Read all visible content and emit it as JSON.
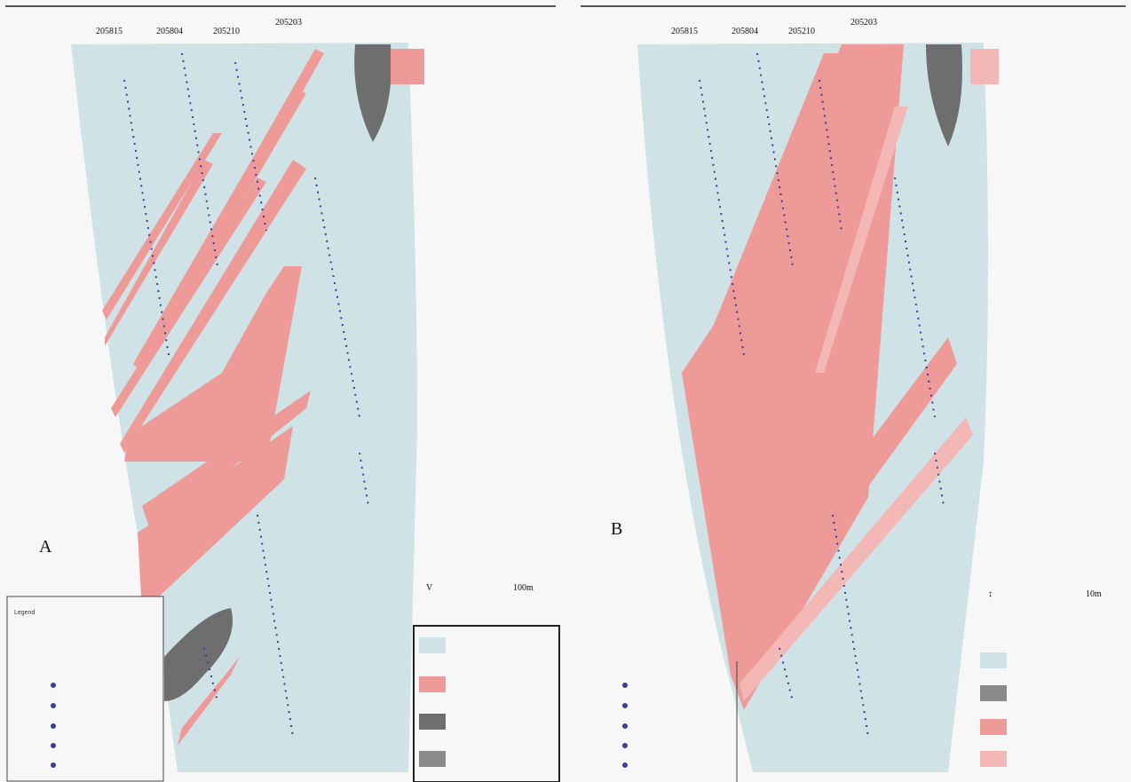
{
  "panel_a": {
    "label": "A",
    "header_labels": [
      "205815",
      "205804",
      "205210",
      "205203"
    ],
    "scale_mark": "V",
    "scale_text": "100m",
    "left_legend": {
      "title": "Legend",
      "subtitle": "",
      "items": [
        "",
        "",
        "",
        ""
      ]
    },
    "right_legend": {
      "items": [
        "",
        "",
        "",
        ""
      ]
    }
  },
  "panel_b": {
    "label": "B",
    "header_labels": [
      "205815",
      "205804",
      "205210",
      "205203"
    ],
    "scale_mark": "↕",
    "scale_text": "10m",
    "left_legend": {
      "title": "",
      "subtitle": "",
      "items": [
        "",
        "",
        "",
        "",
        ""
      ]
    },
    "right_legend": {
      "items": [
        "",
        "",
        "",
        ""
      ]
    }
  },
  "colors": {
    "background": "#f7f7f7",
    "host_rock": "#cfe3e6",
    "pink_zone": "#ee9a98",
    "light_pink": "#f3b8b6",
    "dark_grey": "#6e6e6e",
    "drillhole": "#3a3aa0"
  }
}
